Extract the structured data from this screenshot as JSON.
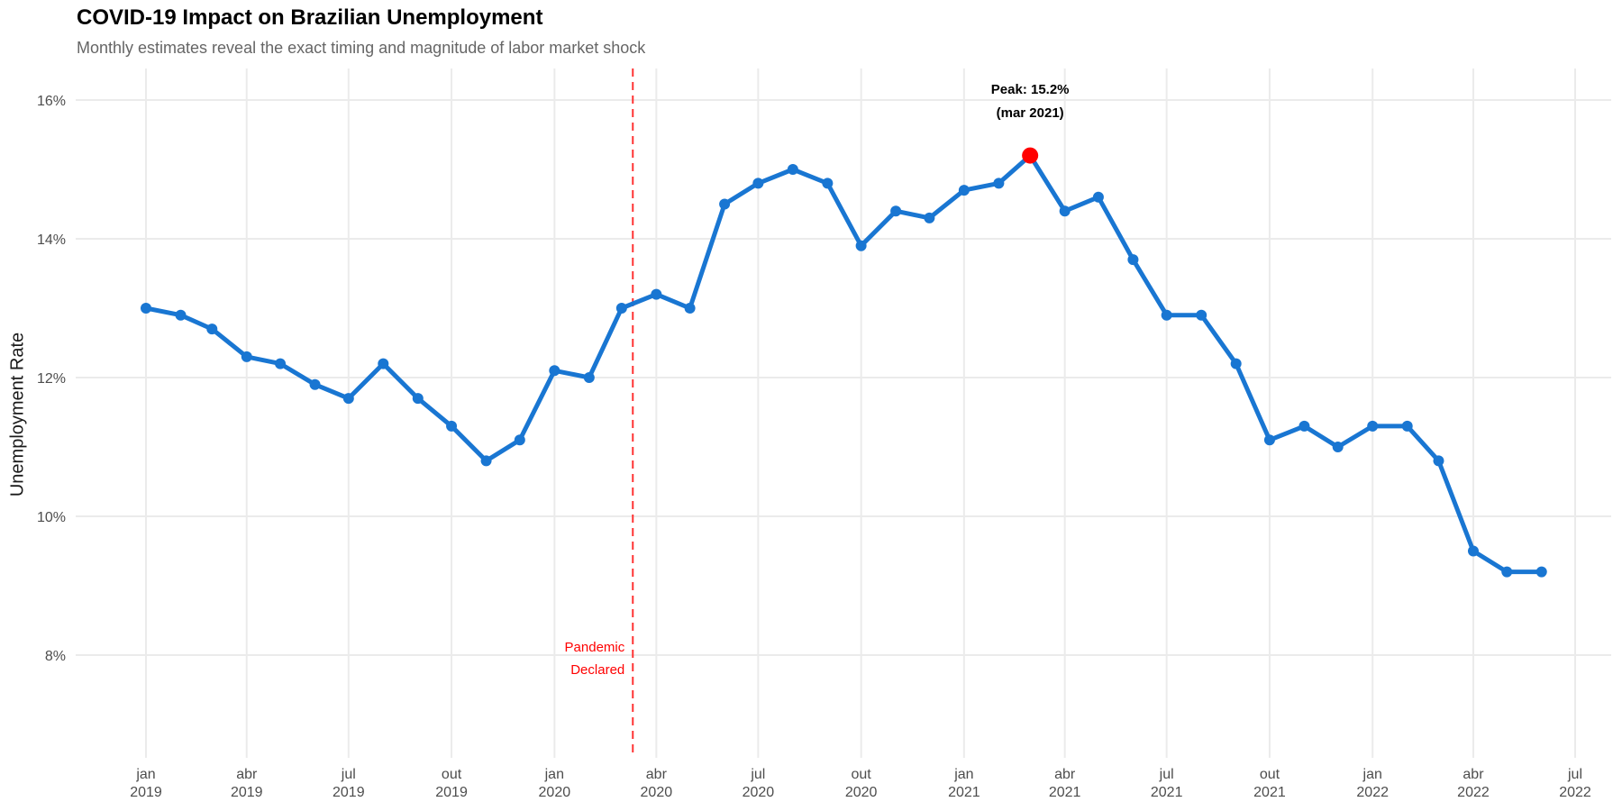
{
  "header": {
    "title": "COVID-19 Impact on Brazilian Unemployment",
    "subtitle": "Monthly estimates reveal the exact timing and magnitude of labor market shock"
  },
  "colors": {
    "line": "#1976D2",
    "peak_marker": "#FF0000",
    "pandemic_line": "#FF3333",
    "pandemic_text": "#FF0000",
    "grid": "#EBEBEB",
    "tick_text": "#4D4D4D"
  },
  "annotations": {
    "peak_line1": "Peak: 15.2%",
    "peak_line2": "(mar 2021)",
    "pandemic_line1": "Pandemic",
    "pandemic_line2": "Declared",
    "pandemic_date": "2020-03-11"
  },
  "chart_data": {
    "type": "line",
    "title": "COVID-19 Impact on Brazilian Unemployment",
    "subtitle": "Monthly estimates reveal the exact timing and magnitude of labor market shock",
    "xlabel": "",
    "ylabel": "Unemployment Rate",
    "ylim": [
      6.6,
      16.5
    ],
    "grid": true,
    "legend": null,
    "y_ticks": [
      8,
      10,
      12,
      14,
      16
    ],
    "y_tick_labels": [
      "8%",
      "10%",
      "12%",
      "14%",
      "16%"
    ],
    "x_ticks": [
      {
        "date": "2019-01-01",
        "month": "jan",
        "year": "2019"
      },
      {
        "date": "2019-04-01",
        "month": "abr",
        "year": "2019"
      },
      {
        "date": "2019-07-01",
        "month": "jul",
        "year": "2019"
      },
      {
        "date": "2019-10-01",
        "month": "out",
        "year": "2019"
      },
      {
        "date": "2020-01-01",
        "month": "jan",
        "year": "2020"
      },
      {
        "date": "2020-04-01",
        "month": "abr",
        "year": "2020"
      },
      {
        "date": "2020-07-01",
        "month": "jul",
        "year": "2020"
      },
      {
        "date": "2020-10-01",
        "month": "out",
        "year": "2020"
      },
      {
        "date": "2021-01-01",
        "month": "jan",
        "year": "2021"
      },
      {
        "date": "2021-04-01",
        "month": "abr",
        "year": "2021"
      },
      {
        "date": "2021-07-01",
        "month": "jul",
        "year": "2021"
      },
      {
        "date": "2021-10-01",
        "month": "out",
        "year": "2021"
      },
      {
        "date": "2022-01-01",
        "month": "jan",
        "year": "2022"
      },
      {
        "date": "2022-04-01",
        "month": "abr",
        "year": "2022"
      },
      {
        "date": "2022-07-01",
        "month": "jul",
        "year": "2022"
      }
    ],
    "x": [
      "2019-01",
      "2019-02",
      "2019-03",
      "2019-04",
      "2019-05",
      "2019-06",
      "2019-07",
      "2019-08",
      "2019-09",
      "2019-10",
      "2019-11",
      "2019-12",
      "2020-01",
      "2020-02",
      "2020-03",
      "2020-04",
      "2020-05",
      "2020-06",
      "2020-07",
      "2020-08",
      "2020-09",
      "2020-10",
      "2020-11",
      "2020-12",
      "2021-01",
      "2021-02",
      "2021-03",
      "2021-04",
      "2021-05",
      "2021-06",
      "2021-07",
      "2021-08",
      "2021-09",
      "2021-10",
      "2021-11",
      "2021-12",
      "2022-01",
      "2022-02",
      "2022-03",
      "2022-04",
      "2022-05",
      "2022-06"
    ],
    "series": [
      {
        "name": "Unemployment Rate",
        "values": [
          13.0,
          12.9,
          12.7,
          12.3,
          12.2,
          11.9,
          11.7,
          12.2,
          11.7,
          11.3,
          10.8,
          11.1,
          12.1,
          12.0,
          13.0,
          13.2,
          13.0,
          14.5,
          14.8,
          15.0,
          14.8,
          13.9,
          14.4,
          14.3,
          14.7,
          14.8,
          15.2,
          14.4,
          14.6,
          13.7,
          12.9,
          12.9,
          12.2,
          11.1,
          11.3,
          11.0,
          11.3,
          11.3,
          10.8,
          9.5,
          9.2,
          9.2
        ]
      }
    ],
    "peak": {
      "x": "2021-03",
      "value": 15.2,
      "label": "Peak: 15.2% (mar 2021)"
    },
    "vline": {
      "x": "2020-03-11",
      "label": "Pandemic Declared",
      "style": "dashed",
      "color": "#FF3333"
    }
  }
}
